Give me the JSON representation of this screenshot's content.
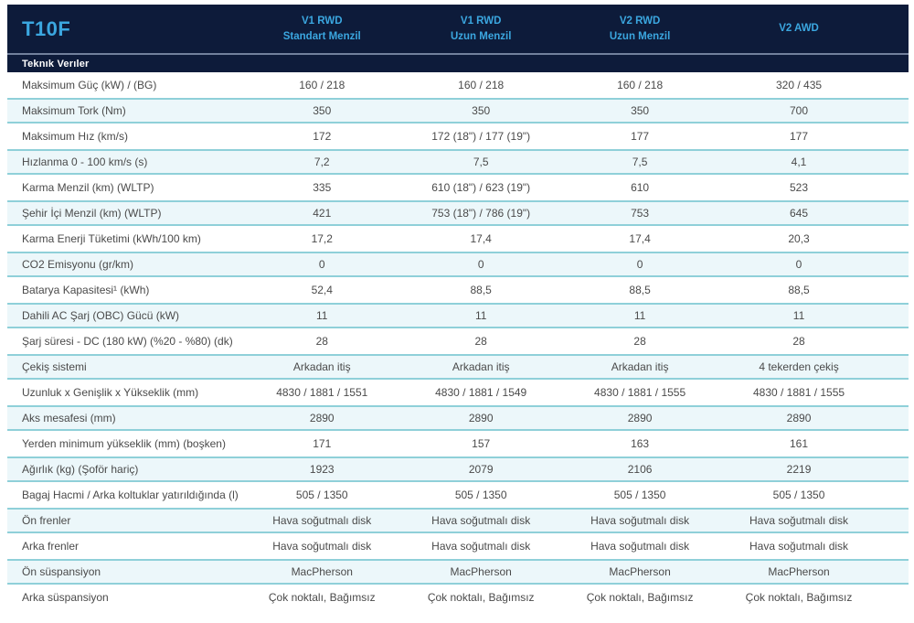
{
  "header": {
    "model": "T10F",
    "section_title": "Teknık Verıler",
    "columns": [
      {
        "line1": "V1 RWD",
        "line2": "Standart Menzil"
      },
      {
        "line1": "V1 RWD",
        "line2": "Uzun Menzil"
      },
      {
        "line1": "V2 RWD",
        "line2": "Uzun Menzil"
      },
      {
        "line1": "V2 AWD",
        "line2": ""
      }
    ]
  },
  "colors": {
    "header_bg": "#0d1b3a",
    "accent_text": "#3ba7e0",
    "section_text": "#ffffff",
    "alt_row_bg": "#ecf7fa",
    "alt_row_border": "#8fd0d9",
    "body_text": "#4a4a4a"
  },
  "rows": [
    {
      "label": "Maksimum Güç (kW) / (BG)",
      "values": [
        "160 / 218",
        "160 / 218",
        "160 / 218",
        "320 / 435"
      ]
    },
    {
      "label": "Maksimum Tork (Nm)",
      "values": [
        "350",
        "350",
        "350",
        "700"
      ]
    },
    {
      "label": "Maksimum Hız (km/s)",
      "values": [
        "172",
        "172 (18\") / 177 (19\")",
        "177",
        "177"
      ]
    },
    {
      "label": "Hızlanma 0 - 100 km/s (s)",
      "values": [
        "7,2",
        "7,5",
        "7,5",
        "4,1"
      ]
    },
    {
      "label": "Karma Menzil (km) (WLTP)",
      "values": [
        "335",
        "610 (18\") / 623 (19\")",
        "610",
        "523"
      ]
    },
    {
      "label": "Şehir İçi Menzil (km) (WLTP)",
      "values": [
        "421",
        "753 (18\") / 786 (19\")",
        "753",
        "645"
      ]
    },
    {
      "label": "Karma Enerji Tüketimi (kWh/100 km)",
      "values": [
        "17,2",
        "17,4",
        "17,4",
        "20,3"
      ]
    },
    {
      "label": "CO2 Emisyonu (gr/km)",
      "values": [
        "0",
        "0",
        "0",
        "0"
      ]
    },
    {
      "label": "Batarya Kapasitesi¹ (kWh)",
      "values": [
        "52,4",
        "88,5",
        "88,5",
        "88,5"
      ]
    },
    {
      "label": "Dahili AC Şarj (OBC) Gücü (kW)",
      "values": [
        "11",
        "11",
        "11",
        "11"
      ]
    },
    {
      "label": "Şarj süresi - DC (180 kW) (%20 - %80) (dk)",
      "values": [
        "28",
        "28",
        "28",
        "28"
      ]
    },
    {
      "label": "Çekiş sistemi",
      "values": [
        "Arkadan itiş",
        "Arkadan itiş",
        "Arkadan itiş",
        "4 tekerden çekiş"
      ]
    },
    {
      "label": "Uzunluk x Genişlik x Yükseklik (mm)",
      "values": [
        "4830 / 1881 / 1551",
        "4830 / 1881 / 1549",
        "4830 / 1881 / 1555",
        "4830 / 1881 / 1555"
      ]
    },
    {
      "label": "Aks mesafesi (mm)",
      "values": [
        "2890",
        "2890",
        "2890",
        "2890"
      ]
    },
    {
      "label": "Yerden minimum yükseklik (mm) (boşken)",
      "values": [
        "171",
        "157",
        "163",
        "161"
      ]
    },
    {
      "label": "Ağırlık (kg) (Şoför hariç)",
      "values": [
        "1923",
        "2079",
        "2106",
        "2219"
      ]
    },
    {
      "label": "Bagaj Hacmi / Arka koltuklar yatırıldığında (l)",
      "values": [
        "505 / 1350",
        "505 / 1350",
        "505 / 1350",
        "505 / 1350"
      ]
    },
    {
      "label": "Ön frenler",
      "values": [
        "Hava soğutmalı disk",
        "Hava soğutmalı disk",
        "Hava soğutmalı disk",
        "Hava soğutmalı disk"
      ]
    },
    {
      "label": "Arka frenler",
      "values": [
        "Hava soğutmalı disk",
        "Hava soğutmalı disk",
        "Hava soğutmalı disk",
        "Hava soğutmalı disk"
      ]
    },
    {
      "label": "Ön süspansiyon",
      "values": [
        "MacPherson",
        "MacPherson",
        "MacPherson",
        "MacPherson"
      ]
    },
    {
      "label": "Arka süspansiyon",
      "values": [
        "Çok noktalı, Bağımsız",
        "Çok noktalı, Bağımsız",
        "Çok noktalı, Bağımsız",
        "Çok noktalı, Bağımsız"
      ]
    }
  ]
}
